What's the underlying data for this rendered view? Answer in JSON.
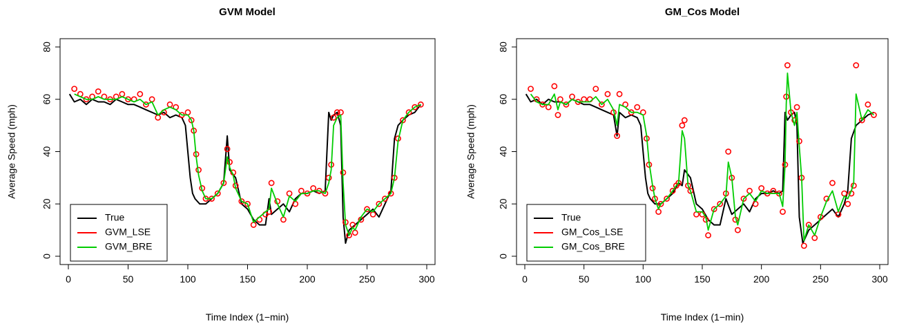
{
  "chart_data": [
    {
      "type": "line",
      "title": "GVM Model",
      "xlabel": "Time Index (1−min)",
      "ylabel": "Average Speed (mph)",
      "xlim": [
        0,
        300
      ],
      "ylim": [
        0,
        80
      ],
      "xticks": [
        0,
        50,
        100,
        150,
        200,
        250,
        300
      ],
      "yticks": [
        0,
        20,
        40,
        60,
        80
      ],
      "legend_position": "bottom-left",
      "grid": false,
      "series": [
        {
          "name": "True",
          "color": "#000000",
          "style": "line",
          "x": [
            1,
            5,
            10,
            15,
            20,
            25,
            30,
            35,
            40,
            45,
            50,
            55,
            60,
            65,
            70,
            75,
            80,
            85,
            90,
            95,
            98,
            100,
            102,
            104,
            106,
            108,
            110,
            115,
            120,
            125,
            130,
            133,
            135,
            140,
            145,
            150,
            155,
            160,
            165,
            168,
            170,
            175,
            180,
            185,
            190,
            195,
            200,
            205,
            210,
            215,
            218,
            220,
            222,
            225,
            228,
            230,
            232,
            235,
            240,
            245,
            250,
            255,
            260,
            265,
            270,
            273,
            276,
            280,
            285,
            290,
            295
          ],
          "y": [
            62,
            59,
            60,
            58,
            60,
            59,
            59,
            58,
            60,
            59,
            58,
            58,
            57,
            56,
            55,
            54,
            55,
            53,
            54,
            53,
            50,
            40,
            30,
            24,
            22,
            21,
            20,
            20,
            22,
            24,
            28,
            46,
            33,
            30,
            20,
            18,
            14,
            12,
            12,
            22,
            16,
            18,
            20,
            17,
            22,
            24,
            24,
            25,
            24,
            25,
            55,
            52,
            54,
            55,
            50,
            15,
            5,
            10,
            12,
            14,
            16,
            18,
            15,
            20,
            25,
            45,
            50,
            52,
            54,
            55,
            58
          ]
        },
        {
          "name": "GVM_LSE",
          "color": "#ff0000",
          "style": "points",
          "x": [
            5,
            10,
            15,
            20,
            25,
            30,
            35,
            40,
            45,
            50,
            55,
            60,
            65,
            70,
            75,
            80,
            85,
            90,
            95,
            100,
            103,
            105,
            107,
            109,
            112,
            115,
            120,
            125,
            130,
            133,
            135,
            138,
            140,
            145,
            150,
            155,
            160,
            165,
            168,
            170,
            175,
            180,
            185,
            190,
            195,
            200,
            205,
            210,
            215,
            218,
            220,
            222,
            225,
            228,
            230,
            232,
            235,
            238,
            240,
            245,
            250,
            255,
            260,
            265,
            270,
            273,
            276,
            280,
            285,
            290,
            295
          ],
          "y": [
            64,
            62,
            60,
            61,
            63,
            61,
            60,
            61,
            62,
            60,
            60,
            62,
            58,
            60,
            53,
            55,
            58,
            57,
            54,
            55,
            52,
            48,
            39,
            33,
            26,
            22,
            22,
            24,
            28,
            41,
            36,
            32,
            27,
            21,
            20,
            12,
            14,
            16,
            17,
            28,
            21,
            14,
            24,
            20,
            25,
            24,
            26,
            25,
            24,
            30,
            35,
            53,
            55,
            55,
            32,
            13,
            8,
            12,
            9,
            14,
            18,
            16,
            20,
            22,
            24,
            30,
            45,
            52,
            55,
            57,
            58
          ]
        },
        {
          "name": "GVM_BRE",
          "color": "#00cc00",
          "style": "line",
          "x": [
            5,
            10,
            15,
            20,
            25,
            30,
            35,
            40,
            45,
            50,
            55,
            60,
            65,
            70,
            75,
            80,
            85,
            90,
            95,
            100,
            103,
            105,
            107,
            109,
            112,
            115,
            120,
            125,
            130,
            133,
            135,
            138,
            140,
            145,
            150,
            155,
            160,
            165,
            168,
            170,
            175,
            180,
            185,
            190,
            195,
            200,
            205,
            210,
            215,
            218,
            220,
            222,
            225,
            228,
            230,
            232,
            235,
            238,
            240,
            245,
            250,
            255,
            260,
            265,
            270,
            273,
            276,
            280,
            285,
            290,
            295
          ],
          "y": [
            62,
            61,
            60,
            60,
            61,
            60,
            60,
            60,
            61,
            60,
            59,
            60,
            58,
            59,
            54,
            56,
            57,
            56,
            54,
            54,
            52,
            48,
            38,
            31,
            25,
            22,
            22,
            24,
            28,
            38,
            34,
            31,
            26,
            21,
            20,
            13,
            15,
            17,
            18,
            26,
            20,
            15,
            23,
            21,
            24,
            24,
            25,
            25,
            24,
            28,
            33,
            50,
            53,
            54,
            28,
            12,
            8,
            11,
            10,
            15,
            18,
            17,
            20,
            22,
            24,
            30,
            44,
            52,
            55,
            57,
            58
          ]
        }
      ]
    },
    {
      "type": "line",
      "title": "GM_Cos Model",
      "xlabel": "Time Index (1−min)",
      "ylabel": "Average Speed (mph)",
      "xlim": [
        0,
        300
      ],
      "ylim": [
        0,
        80
      ],
      "xticks": [
        0,
        50,
        100,
        150,
        200,
        250,
        300
      ],
      "yticks": [
        0,
        20,
        40,
        60,
        80
      ],
      "legend_position": "bottom-left",
      "grid": false,
      "series": [
        {
          "name": "True",
          "color": "#000000",
          "style": "line",
          "x": [
            1,
            5,
            10,
            15,
            20,
            25,
            30,
            35,
            40,
            45,
            50,
            55,
            60,
            65,
            70,
            75,
            78,
            80,
            85,
            90,
            95,
            98,
            100,
            102,
            104,
            106,
            108,
            110,
            115,
            120,
            125,
            130,
            133,
            135,
            140,
            145,
            150,
            155,
            160,
            165,
            170,
            175,
            180,
            185,
            190,
            195,
            200,
            205,
            210,
            215,
            218,
            220,
            222,
            225,
            228,
            230,
            232,
            235,
            240,
            245,
            250,
            255,
            260,
            265,
            270,
            273,
            276,
            280,
            285,
            290,
            295
          ],
          "y": [
            62,
            59,
            60,
            58,
            60,
            59,
            59,
            58,
            60,
            59,
            58,
            58,
            57,
            56,
            55,
            54,
            46,
            55,
            53,
            54,
            53,
            50,
            40,
            30,
            24,
            22,
            21,
            20,
            20,
            22,
            24,
            28,
            27,
            33,
            30,
            20,
            18,
            14,
            12,
            12,
            22,
            16,
            18,
            20,
            17,
            22,
            24,
            24,
            25,
            24,
            25,
            55,
            52,
            54,
            55,
            50,
            15,
            5,
            10,
            12,
            14,
            16,
            18,
            15,
            20,
            25,
            45,
            50,
            52,
            54,
            55
          ]
        },
        {
          "name": "GM_Cos_LSE",
          "color": "#ff0000",
          "style": "points",
          "x": [
            5,
            10,
            15,
            20,
            25,
            28,
            30,
            35,
            40,
            45,
            50,
            55,
            60,
            65,
            70,
            75,
            78,
            80,
            85,
            90,
            95,
            100,
            103,
            105,
            108,
            110,
            113,
            115,
            120,
            125,
            128,
            130,
            133,
            135,
            138,
            140,
            145,
            150,
            153,
            155,
            160,
            165,
            170,
            172,
            175,
            178,
            180,
            185,
            190,
            195,
            200,
            205,
            210,
            215,
            218,
            220,
            221,
            222,
            225,
            228,
            230,
            232,
            234,
            236,
            240,
            245,
            250,
            255,
            260,
            265,
            270,
            273,
            276,
            278,
            280,
            285,
            290,
            295
          ],
          "y": [
            64,
            60,
            58,
            57,
            65,
            54,
            60,
            58,
            61,
            59,
            60,
            60,
            64,
            58,
            62,
            55,
            46,
            62,
            58,
            55,
            57,
            55,
            45,
            35,
            26,
            22,
            17,
            20,
            22,
            25,
            27,
            28,
            50,
            52,
            27,
            25,
            16,
            16,
            14,
            8,
            18,
            20,
            24,
            40,
            30,
            14,
            10,
            22,
            25,
            20,
            26,
            24,
            25,
            24,
            17,
            35,
            61,
            73,
            55,
            52,
            57,
            44,
            30,
            4,
            12,
            7,
            15,
            22,
            28,
            16,
            24,
            20,
            24,
            27,
            73,
            52,
            58,
            54
          ]
        },
        {
          "name": "GM_Cos_BRE",
          "color": "#00cc00",
          "style": "line",
          "x": [
            5,
            10,
            15,
            20,
            25,
            28,
            30,
            35,
            40,
            45,
            50,
            55,
            60,
            65,
            70,
            75,
            78,
            80,
            85,
            90,
            95,
            100,
            103,
            105,
            108,
            110,
            113,
            115,
            120,
            125,
            128,
            130,
            133,
            135,
            138,
            140,
            145,
            150,
            153,
            155,
            160,
            165,
            170,
            172,
            175,
            178,
            180,
            185,
            190,
            195,
            200,
            205,
            210,
            215,
            218,
            220,
            221,
            222,
            225,
            228,
            230,
            232,
            234,
            236,
            240,
            245,
            250,
            255,
            260,
            265,
            270,
            273,
            276,
            278,
            280,
            285,
            290,
            295
          ],
          "y": [
            62,
            59,
            58,
            58,
            62,
            56,
            59,
            58,
            60,
            59,
            59,
            59,
            61,
            58,
            60,
            56,
            50,
            58,
            57,
            55,
            55,
            54,
            46,
            36,
            27,
            22,
            18,
            20,
            22,
            25,
            27,
            28,
            48,
            45,
            27,
            25,
            17,
            17,
            15,
            10,
            18,
            20,
            23,
            36,
            30,
            15,
            12,
            22,
            24,
            21,
            25,
            24,
            24,
            24,
            19,
            35,
            58,
            70,
            55,
            50,
            55,
            42,
            30,
            6,
            12,
            8,
            15,
            21,
            25,
            17,
            23,
            22,
            25,
            28,
            62,
            52,
            56,
            54
          ]
        }
      ]
    }
  ]
}
